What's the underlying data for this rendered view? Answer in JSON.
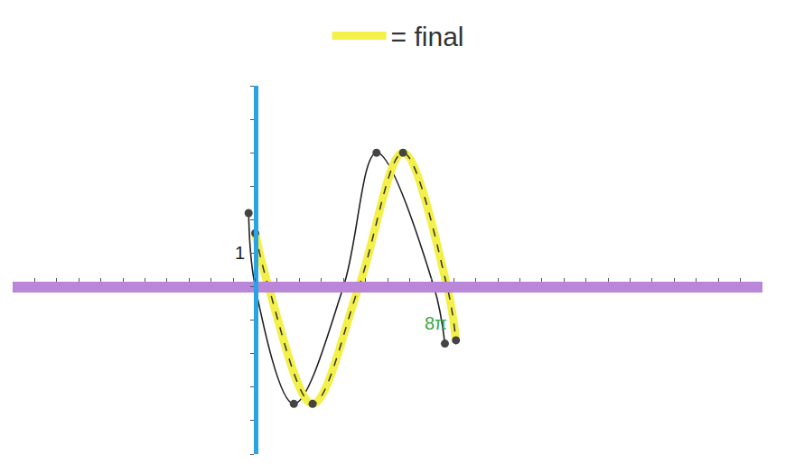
{
  "chart_data": {
    "type": "line",
    "xlim": [
      -11,
      23
    ],
    "xticks": [
      -11,
      -10,
      -9,
      -8,
      -7,
      -6,
      -5,
      -4,
      -3,
      -2,
      -1,
      0,
      1,
      2,
      3,
      4,
      5,
      6,
      7,
      8,
      9,
      10,
      11,
      12,
      13,
      14,
      15,
      16,
      17,
      18,
      19,
      20,
      21,
      22,
      23
    ],
    "ylim": [
      -5,
      6
    ],
    "yticks": [
      -5,
      -4,
      -3,
      -2,
      -1,
      0,
      1,
      2,
      3,
      4,
      5,
      6
    ],
    "tick_labels": false,
    "grid": false,
    "legend": "top",
    "annotations": [
      {
        "text": "1",
        "x": -0.7,
        "y": 1
      },
      {
        "text": "8π",
        "x": 8.2,
        "y": -1.1,
        "color": "#3aa845"
      }
    ],
    "series": [
      {
        "color": "#222222",
        "marker": "circle",
        "x": [
          -0.3,
          0,
          1.75,
          4,
          5.5,
          8.1,
          8.6
        ],
        "values": [
          2.2,
          0,
          -3.5,
          0,
          4,
          0,
          -1.7
        ]
      },
      {
        "name": "= final",
        "color": "#f3f04a",
        "line_style": "dash",
        "marker": "circle",
        "x": [
          0,
          0.6,
          2.6,
          4.7,
          6.7,
          8.7,
          9.1
        ],
        "values": [
          1.6,
          0,
          -3.5,
          0,
          4,
          0,
          -1.6
        ]
      }
    ]
  }
}
